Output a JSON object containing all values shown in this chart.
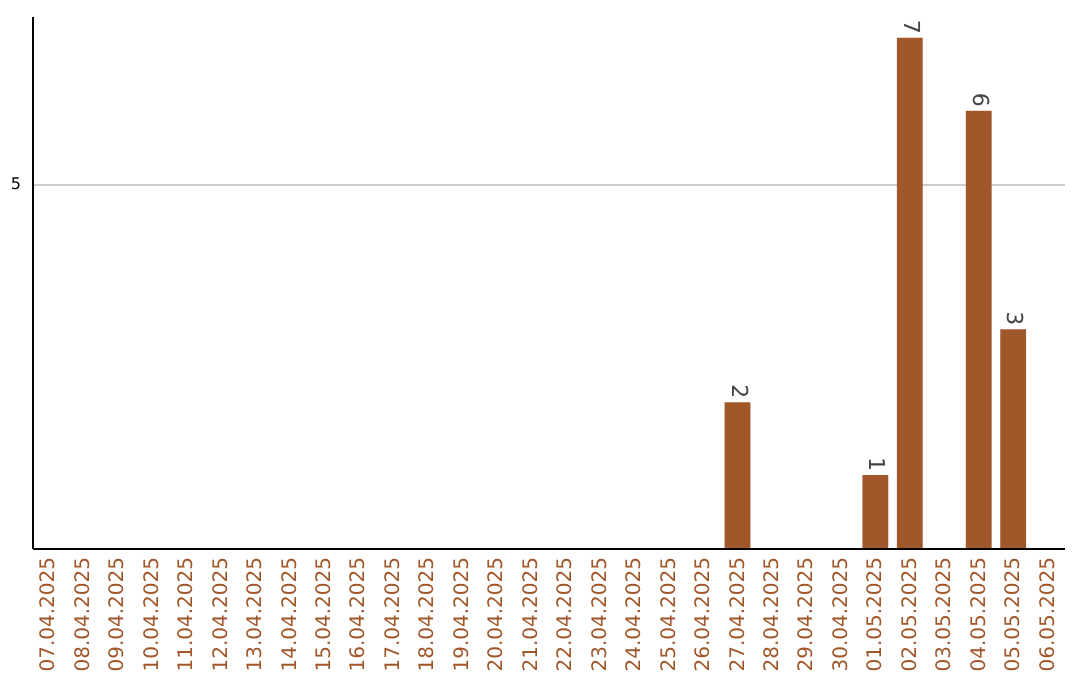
{
  "chart_data": {
    "type": "bar",
    "categories": [
      "07.04.2025",
      "08.04.2025",
      "09.04.2025",
      "10.04.2025",
      "11.04.2025",
      "12.04.2025",
      "13.04.2025",
      "14.04.2025",
      "15.04.2025",
      "16.04.2025",
      "17.04.2025",
      "18.04.2025",
      "19.04.2025",
      "20.04.2025",
      "21.04.2025",
      "22.04.2025",
      "23.04.2025",
      "24.04.2025",
      "25.04.2025",
      "26.04.2025",
      "27.04.2025",
      "28.04.2025",
      "29.04.2025",
      "30.04.2025",
      "01.05.2025",
      "02.05.2025",
      "03.05.2025",
      "04.05.2025",
      "05.05.2025",
      "06.05.2025"
    ],
    "values": [
      null,
      null,
      null,
      null,
      null,
      null,
      null,
      null,
      null,
      null,
      null,
      null,
      null,
      null,
      null,
      null,
      null,
      null,
      null,
      null,
      2,
      null,
      null,
      null,
      1,
      7,
      null,
      6,
      3,
      null
    ],
    "data_labels": true,
    "color": "#a0572a",
    "ylim": [
      0,
      7.3
    ],
    "yticks": [
      5
    ],
    "grid": "y"
  }
}
